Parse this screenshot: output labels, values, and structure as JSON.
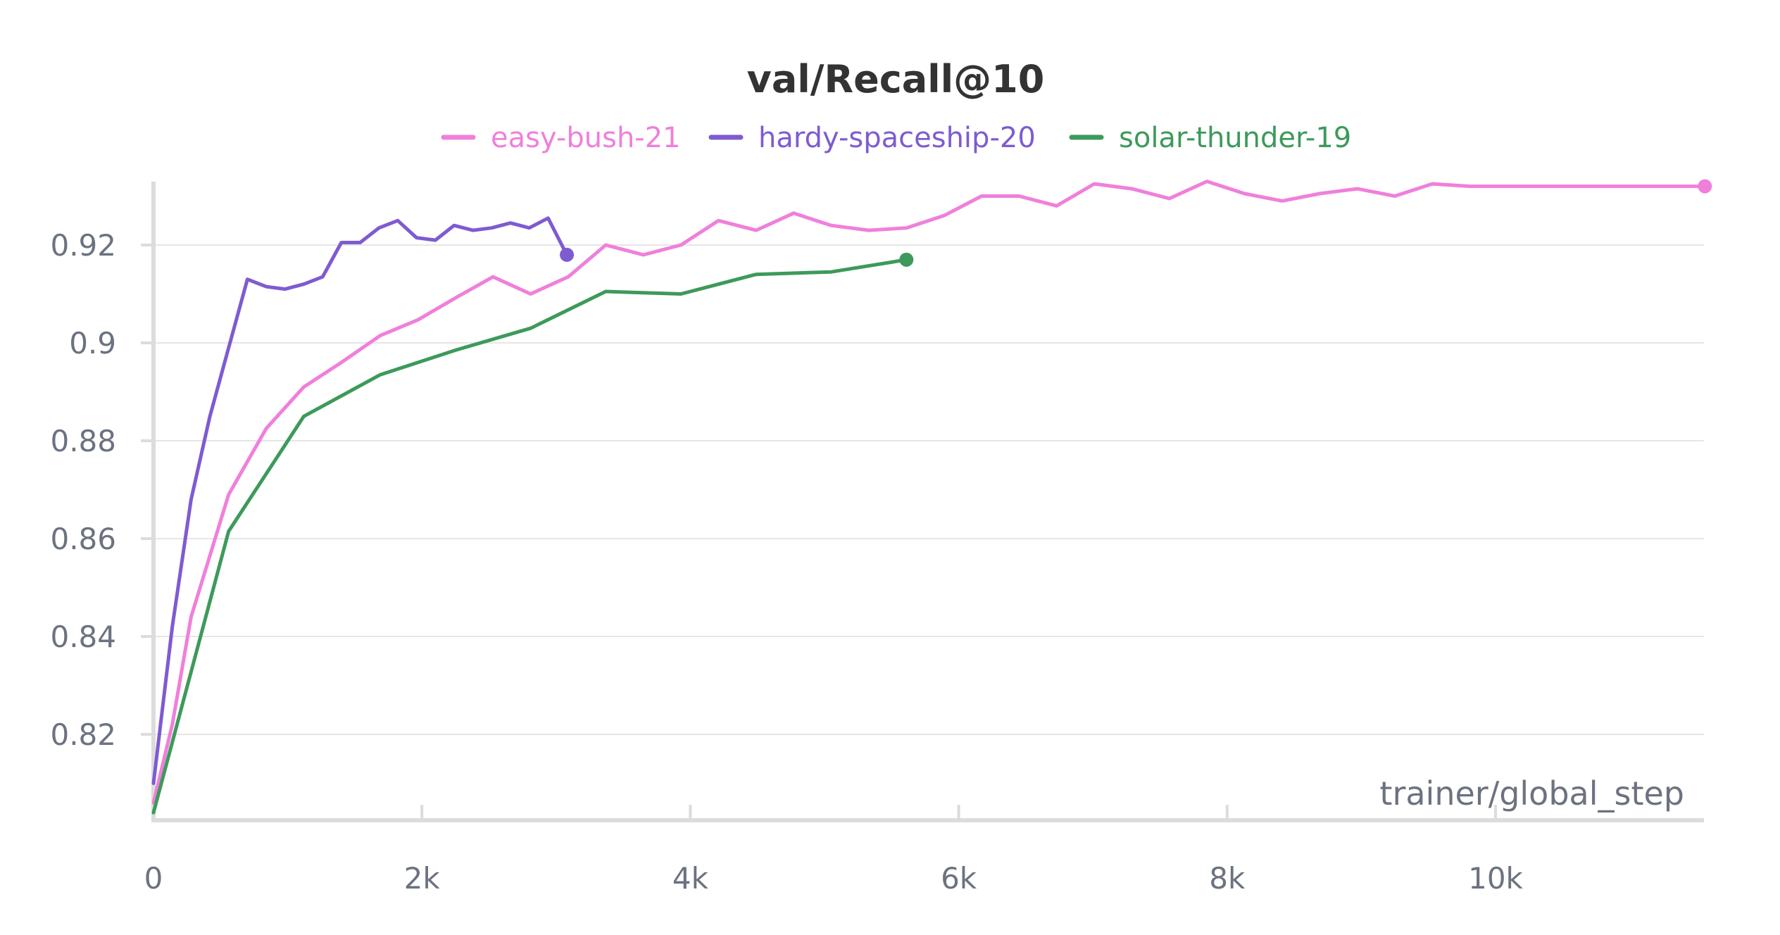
{
  "chart_data": {
    "type": "line",
    "title": "val/Recall@10",
    "xlabel": "trainer/global_step",
    "ylabel": "",
    "xlim": [
      0,
      11560
    ],
    "ylim": [
      0.8035,
      0.9365
    ],
    "x_ticks": [
      {
        "value": 0,
        "label": "0"
      },
      {
        "value": 2000,
        "label": "2k"
      },
      {
        "value": 4000,
        "label": "4k"
      },
      {
        "value": 6000,
        "label": "6k"
      },
      {
        "value": 8000,
        "label": "8k"
      },
      {
        "value": 10000,
        "label": "10k"
      }
    ],
    "y_ticks": [
      {
        "value": 0.82,
        "label": "0.82"
      },
      {
        "value": 0.84,
        "label": "0.84"
      },
      {
        "value": 0.86,
        "label": "0.86"
      },
      {
        "value": 0.88,
        "label": "0.88"
      },
      {
        "value": 0.9,
        "label": "0.9"
      },
      {
        "value": 0.92,
        "label": "0.92"
      }
    ],
    "grid": true,
    "legend_position": "top-center",
    "series": [
      {
        "name": "easy-bush-21",
        "color": "#f07fdb",
        "points": [
          [
            0,
            0.806
          ],
          [
            140,
            0.822
          ],
          [
            280,
            0.844
          ],
          [
            560,
            0.869
          ],
          [
            840,
            0.8825
          ],
          [
            1120,
            0.891
          ],
          [
            1400,
            0.896
          ],
          [
            1690,
            0.9015
          ],
          [
            1970,
            0.9047
          ],
          [
            2250,
            0.9092
          ],
          [
            2530,
            0.9135
          ],
          [
            2810,
            0.91
          ],
          [
            3090,
            0.9135
          ],
          [
            3370,
            0.92
          ],
          [
            3650,
            0.918
          ],
          [
            3930,
            0.92
          ],
          [
            4210,
            0.925
          ],
          [
            4490,
            0.923
          ],
          [
            4770,
            0.9265
          ],
          [
            5050,
            0.924
          ],
          [
            5330,
            0.923
          ],
          [
            5610,
            0.9235
          ],
          [
            5890,
            0.926
          ],
          [
            6170,
            0.93
          ],
          [
            6450,
            0.93
          ],
          [
            6730,
            0.928
          ],
          [
            7010,
            0.9325
          ],
          [
            7290,
            0.9315
          ],
          [
            7570,
            0.9295
          ],
          [
            7850,
            0.933
          ],
          [
            8130,
            0.9305
          ],
          [
            8410,
            0.929
          ],
          [
            8690,
            0.9305
          ],
          [
            8970,
            0.9315
          ],
          [
            9250,
            0.93
          ],
          [
            9530,
            0.9325
          ],
          [
            9810,
            0.932
          ],
          [
            10090,
            0.932
          ],
          [
            10370,
            0.932
          ],
          [
            10650,
            0.932
          ],
          [
            10930,
            0.932
          ],
          [
            11210,
            0.932
          ],
          [
            11560,
            0.932
          ]
        ]
      },
      {
        "name": "hardy-spaceship-20",
        "color": "#7e5bd1",
        "points": [
          [
            0,
            0.81
          ],
          [
            140,
            0.842
          ],
          [
            280,
            0.868
          ],
          [
            420,
            0.885
          ],
          [
            560,
            0.899
          ],
          [
            700,
            0.913
          ],
          [
            840,
            0.9115
          ],
          [
            980,
            0.911
          ],
          [
            1120,
            0.912
          ],
          [
            1260,
            0.9135
          ],
          [
            1400,
            0.9205
          ],
          [
            1540,
            0.9205
          ],
          [
            1680,
            0.9235
          ],
          [
            1820,
            0.925
          ],
          [
            1960,
            0.9215
          ],
          [
            2100,
            0.921
          ],
          [
            2240,
            0.924
          ],
          [
            2380,
            0.923
          ],
          [
            2520,
            0.9235
          ],
          [
            2660,
            0.9245
          ],
          [
            2800,
            0.9235
          ],
          [
            2940,
            0.9255
          ],
          [
            3080,
            0.918
          ]
        ]
      },
      {
        "name": "solar-thunder-19",
        "color": "#3d9a5a",
        "points": [
          [
            0,
            0.804
          ],
          [
            560,
            0.8615
          ],
          [
            1120,
            0.885
          ],
          [
            1690,
            0.8935
          ],
          [
            2250,
            0.8985
          ],
          [
            2810,
            0.903
          ],
          [
            3370,
            0.9105
          ],
          [
            3930,
            0.91
          ],
          [
            4490,
            0.914
          ],
          [
            5050,
            0.9145
          ],
          [
            5610,
            0.917
          ]
        ]
      }
    ]
  }
}
